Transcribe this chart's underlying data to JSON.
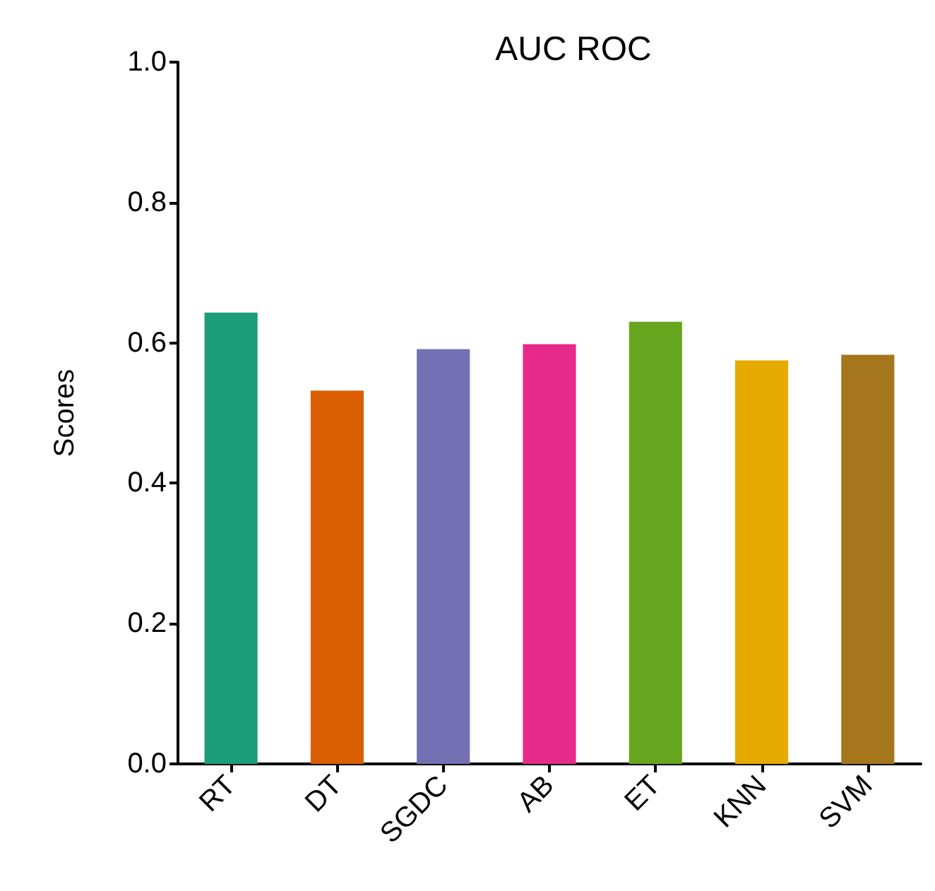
{
  "chart_data": {
    "type": "bar",
    "title": "AUC ROC",
    "ylabel": "Scores",
    "categories": [
      "RT",
      "DT",
      "SGDC",
      "AB",
      "ET",
      "KNN",
      "SVM"
    ],
    "values": [
      0.643,
      0.532,
      0.591,
      0.598,
      0.63,
      0.575,
      0.583
    ],
    "colors": [
      "#1b9e77",
      "#d95f02",
      "#7570b3",
      "#e7298a",
      "#66a61e",
      "#e6ab02",
      "#a6761d"
    ],
    "ylim": [
      0,
      1
    ],
    "yticks": [
      {
        "value": 0,
        "label": "0.0"
      },
      {
        "value": 0.2,
        "label": "0.2"
      },
      {
        "value": 0.4,
        "label": "0.4"
      },
      {
        "value": 0.6,
        "label": "0.6"
      },
      {
        "value": 0.8,
        "label": "0.8"
      },
      {
        "value": 1,
        "label": "1.0"
      }
    ],
    "grid": false
  }
}
